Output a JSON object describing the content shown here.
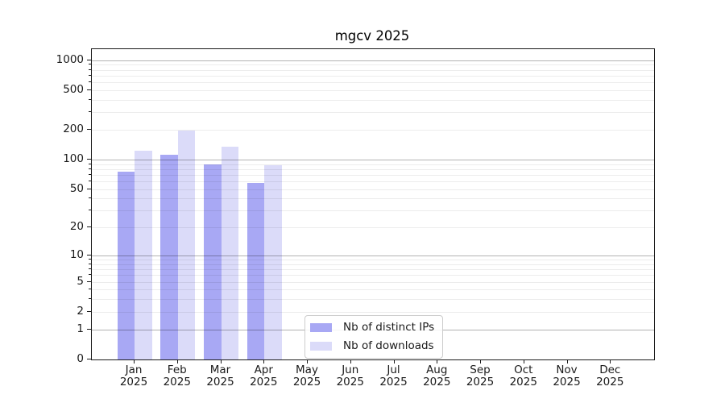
{
  "chart_data": {
    "type": "bar",
    "title": "mgcv 2025",
    "scale": "log10(value+1)",
    "grid": "both (minor faint, major decades darker), drawn over bars",
    "legend_position": "inside lower-center-left",
    "categories": [
      "Jan",
      "Feb",
      "Mar",
      "Apr",
      "May",
      "Jun",
      "Jul",
      "Aug",
      "Sep",
      "Oct",
      "Nov",
      "Dec"
    ],
    "xticklabels": [
      {
        "line1": "Jan",
        "line2": "2025"
      },
      {
        "line1": "Feb",
        "line2": "2025"
      },
      {
        "line1": "Mar",
        "line2": "2025"
      },
      {
        "line1": "Apr",
        "line2": "2025"
      },
      {
        "line1": "May",
        "line2": "2025"
      },
      {
        "line1": "Jun",
        "line2": "2025"
      },
      {
        "line1": "Jul",
        "line2": "2025"
      },
      {
        "line1": "Aug",
        "line2": "2025"
      },
      {
        "line1": "Sep",
        "line2": "2025"
      },
      {
        "line1": "Oct",
        "line2": "2025"
      },
      {
        "line1": "Nov",
        "line2": "2025"
      },
      {
        "line1": "Dec",
        "line2": "2025"
      }
    ],
    "series": [
      {
        "name": "Nb of distinct IPs",
        "color": "#a8a8f4",
        "values": [
          75,
          112,
          89,
          58,
          null,
          null,
          null,
          null,
          null,
          null,
          null,
          null
        ]
      },
      {
        "name": "Nb of downloads",
        "color": "#dbdbf9",
        "values": [
          122,
          197,
          134,
          88,
          null,
          null,
          null,
          null,
          null,
          null,
          null,
          null
        ]
      }
    ],
    "ylim": [
      0,
      1300
    ],
    "yticks": [
      0,
      1,
      2,
      5,
      10,
      20,
      50,
      100,
      200,
      500,
      1000
    ],
    "yticklabels": [
      "0",
      "1",
      "2",
      "5",
      "10",
      "20",
      "50",
      "100",
      "200",
      "500",
      "1000"
    ],
    "major_gridlines": [
      1,
      10,
      100,
      1000
    ],
    "minor_gridlines": [
      2,
      3,
      4,
      5,
      6,
      7,
      8,
      9,
      20,
      30,
      40,
      50,
      60,
      70,
      80,
      90,
      200,
      300,
      400,
      500,
      600,
      700,
      800,
      900
    ],
    "xlabel": "",
    "ylabel": ""
  },
  "colors": {
    "distinct_ips": "#a8a8f4",
    "downloads": "#dbdbf9",
    "spine": "#1a1a1a",
    "major_grid": "#b3b3b3",
    "minor_grid": "#e8e8e8",
    "background": "#ffffff"
  }
}
